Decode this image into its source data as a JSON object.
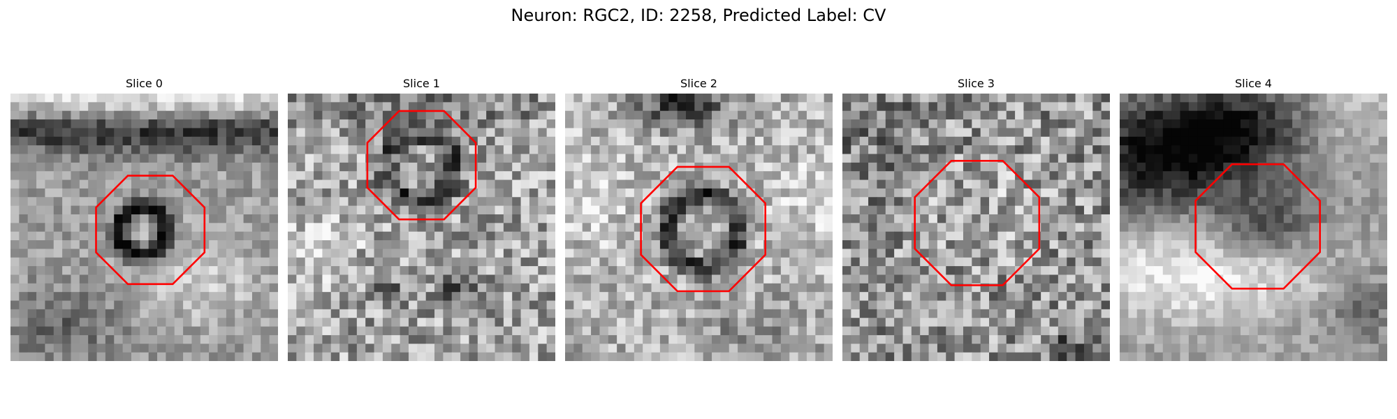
{
  "figure": {
    "title": "Neuron: RGC2, ID: 2258, Predicted Label: CV"
  },
  "slices": [
    {
      "title": "Slice 0"
    },
    {
      "title": "Slice 1"
    },
    {
      "title": "Slice 2"
    },
    {
      "title": "Slice 3"
    },
    {
      "title": "Slice 4"
    }
  ],
  "colors": {
    "outline": "#ff0000",
    "image_colormap": "grayscale"
  }
}
